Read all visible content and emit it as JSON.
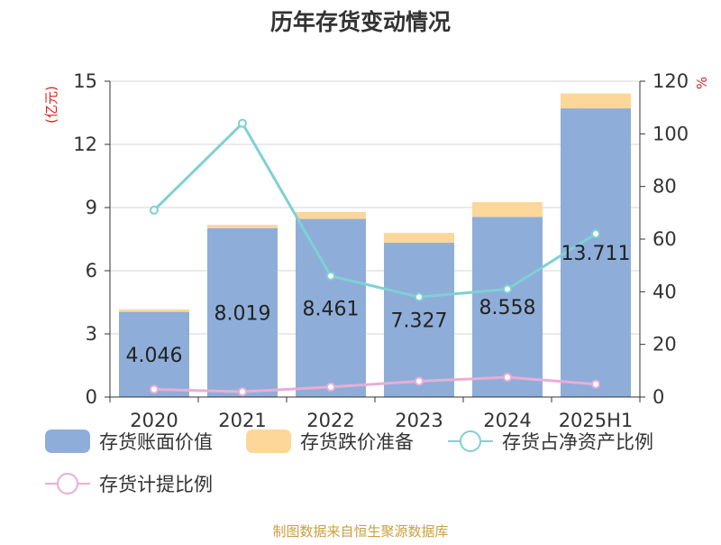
{
  "chart_data": {
    "type": "bar",
    "title": "历年存货变动情况",
    "y_left_unit": "(亿元)",
    "y_right_unit": "%",
    "categories": [
      "2020",
      "2021",
      "2022",
      "2023",
      "2024",
      "2025H1"
    ],
    "ylim_left": [
      0,
      15
    ],
    "yticks_left": [
      0,
      3,
      6,
      9,
      12,
      15
    ],
    "ylim_right": [
      0,
      120
    ],
    "yticks_right": [
      0,
      20,
      40,
      60,
      80,
      100,
      120
    ],
    "bar_series": [
      {
        "name": "存货账面价值",
        "color": "#8eaed9",
        "values": [
          4.046,
          8.019,
          8.461,
          7.327,
          8.558,
          13.711
        ],
        "labels": [
          "4.046",
          "8.019",
          "8.461",
          "7.327",
          "8.558",
          "13.711"
        ]
      },
      {
        "name": "存货跌价准备",
        "color": "#fdd79a",
        "values": [
          0.12,
          0.16,
          0.33,
          0.47,
          0.7,
          0.71
        ]
      }
    ],
    "line_series": [
      {
        "name": "存货占净资产比例",
        "color": "#7fd0d4",
        "values": [
          71,
          104,
          46,
          38,
          41,
          62
        ]
      },
      {
        "name": "存货计提比例",
        "color": "#e8aed6",
        "values": [
          2.9,
          2.0,
          3.8,
          6.0,
          7.5,
          4.9
        ]
      }
    ],
    "grid": true,
    "legend_position": "bottom"
  },
  "source_text": "制图数据来自恒生聚源数据库"
}
